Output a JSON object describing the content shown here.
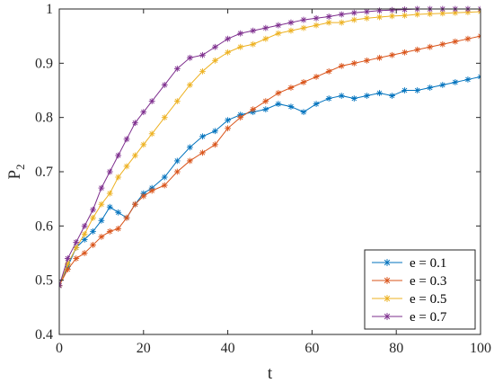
{
  "chart_data": {
    "type": "line",
    "xlabel": "t",
    "ylabel_main": "P",
    "ylabel_sub": "2",
    "xlim": [
      0,
      100
    ],
    "ylim": [
      0.4,
      1.0
    ],
    "xticks": [
      0,
      20,
      40,
      60,
      80,
      100
    ],
    "yticks": [
      0.4,
      0.5,
      0.6,
      0.7,
      0.8,
      0.9,
      1.0
    ],
    "xtick_labels": [
      "0",
      "20",
      "40",
      "60",
      "80",
      "100"
    ],
    "ytick_labels": [
      "0.4",
      "0.5",
      "0.6",
      "0.7",
      "0.8",
      "0.9",
      "1"
    ],
    "grid": false,
    "legend_position": "bottom-right",
    "marker": "asterisk",
    "series": [
      {
        "name": "e = 0.1",
        "color": "#0072BD",
        "x": [
          0,
          2,
          4,
          6,
          8,
          10,
          12,
          14,
          16,
          18,
          20,
          22,
          25,
          28,
          31,
          34,
          37,
          40,
          43,
          46,
          49,
          52,
          55,
          58,
          61,
          64,
          67,
          70,
          73,
          76,
          79,
          82,
          85,
          88,
          91,
          94,
          97,
          100
        ],
        "y": [
          0.49,
          0.525,
          0.56,
          0.575,
          0.59,
          0.61,
          0.635,
          0.625,
          0.615,
          0.64,
          0.66,
          0.67,
          0.69,
          0.72,
          0.745,
          0.765,
          0.775,
          0.795,
          0.805,
          0.81,
          0.815,
          0.825,
          0.82,
          0.81,
          0.825,
          0.835,
          0.84,
          0.835,
          0.84,
          0.845,
          0.84,
          0.85,
          0.85,
          0.855,
          0.86,
          0.865,
          0.87,
          0.875
        ]
      },
      {
        "name": "e = 0.3",
        "color": "#D95319",
        "x": [
          0,
          2,
          4,
          6,
          8,
          10,
          12,
          14,
          16,
          18,
          20,
          22,
          25,
          28,
          31,
          34,
          37,
          40,
          43,
          46,
          49,
          52,
          55,
          58,
          61,
          64,
          67,
          70,
          73,
          76,
          79,
          82,
          85,
          88,
          91,
          94,
          97,
          100
        ],
        "y": [
          0.49,
          0.52,
          0.54,
          0.55,
          0.565,
          0.58,
          0.59,
          0.595,
          0.615,
          0.64,
          0.655,
          0.665,
          0.675,
          0.7,
          0.72,
          0.735,
          0.75,
          0.78,
          0.8,
          0.815,
          0.83,
          0.845,
          0.855,
          0.865,
          0.875,
          0.885,
          0.895,
          0.9,
          0.905,
          0.91,
          0.915,
          0.92,
          0.925,
          0.93,
          0.935,
          0.94,
          0.945,
          0.95
        ]
      },
      {
        "name": "e = 0.5",
        "color": "#EDB120",
        "x": [
          0,
          2,
          4,
          6,
          8,
          10,
          12,
          14,
          16,
          18,
          20,
          22,
          25,
          28,
          31,
          34,
          37,
          40,
          43,
          46,
          49,
          52,
          55,
          58,
          61,
          64,
          67,
          70,
          73,
          76,
          79,
          82,
          85,
          88,
          91,
          94,
          97,
          100
        ],
        "y": [
          0.49,
          0.53,
          0.56,
          0.585,
          0.615,
          0.64,
          0.66,
          0.69,
          0.71,
          0.73,
          0.75,
          0.77,
          0.8,
          0.83,
          0.86,
          0.885,
          0.905,
          0.92,
          0.93,
          0.935,
          0.945,
          0.955,
          0.96,
          0.965,
          0.97,
          0.975,
          0.975,
          0.98,
          0.983,
          0.985,
          0.987,
          0.988,
          0.99,
          0.991,
          0.992,
          0.993,
          0.994,
          0.995
        ]
      },
      {
        "name": "e = 0.7",
        "color": "#7E2F8E",
        "x": [
          0,
          2,
          4,
          6,
          8,
          10,
          12,
          14,
          16,
          18,
          20,
          22,
          25,
          28,
          31,
          34,
          37,
          40,
          43,
          46,
          49,
          52,
          55,
          58,
          61,
          64,
          67,
          70,
          73,
          76,
          79,
          82,
          85,
          88,
          91,
          94,
          97,
          100
        ],
        "y": [
          0.49,
          0.54,
          0.57,
          0.6,
          0.63,
          0.67,
          0.7,
          0.73,
          0.76,
          0.79,
          0.81,
          0.83,
          0.86,
          0.89,
          0.91,
          0.915,
          0.93,
          0.945,
          0.955,
          0.96,
          0.965,
          0.97,
          0.975,
          0.98,
          0.983,
          0.986,
          0.99,
          0.993,
          0.995,
          0.997,
          0.998,
          0.999,
          1.0,
          1.0,
          1.0,
          1.0,
          1.0,
          1.0
        ]
      }
    ]
  }
}
